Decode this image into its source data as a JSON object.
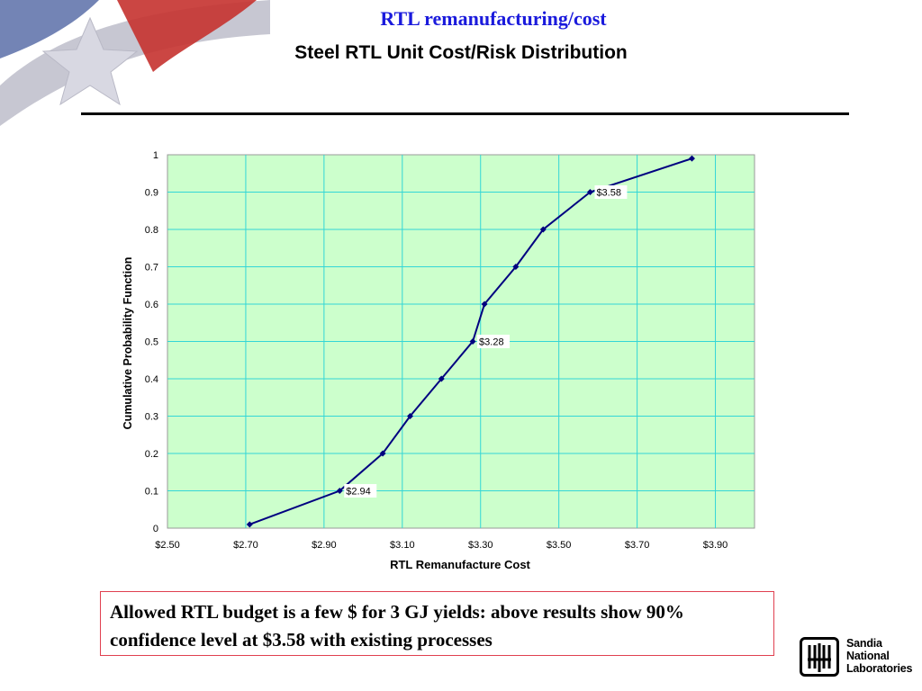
{
  "slide": {
    "title": "RTL remanufacturing/cost",
    "subtitle": "Steel RTL Unit Cost/Risk Distribution",
    "note": "Allowed RTL budget is a few $ for 3 GJ yields: above results show 90% confidence level at $3.58 with existing processes"
  },
  "logo": {
    "lines": [
      "Sandia",
      "National",
      "Laboratories"
    ]
  },
  "colors": {
    "title": "#1a1adc",
    "plot_bg": "#ccffcc",
    "grid": "#33d6d6",
    "series": "#000080",
    "note_border": "#e04050"
  },
  "chart_data": {
    "type": "line",
    "title": "",
    "xlabel": "RTL Remanufacture Cost",
    "ylabel": "Cumulative Probability Function",
    "xlim": [
      2.5,
      4.0
    ],
    "ylim": [
      0,
      1
    ],
    "x_ticks": [
      2.5,
      2.7,
      2.9,
      3.1,
      3.3,
      3.5,
      3.7,
      3.9
    ],
    "x_tick_labels": [
      "$2.50",
      "$2.70",
      "$2.90",
      "$3.10",
      "$3.30",
      "$3.50",
      "$3.70",
      "$3.90"
    ],
    "y_ticks": [
      0,
      0.1,
      0.2,
      0.3,
      0.4,
      0.5,
      0.6,
      0.7,
      0.8,
      0.9,
      1
    ],
    "y_tick_labels": [
      "0",
      "0.1",
      "0.2",
      "0.3",
      "0.4",
      "0.5",
      "0.6",
      "0.7",
      "0.8",
      "0.9",
      "1"
    ],
    "grid": true,
    "legend": "none",
    "series": [
      {
        "x": [
          2.71,
          2.94,
          3.05,
          3.12,
          3.2,
          3.28,
          3.31,
          3.39,
          3.46,
          3.58,
          3.84
        ],
        "y": [
          0.01,
          0.1,
          0.2,
          0.3,
          0.4,
          0.5,
          0.6,
          0.7,
          0.8,
          0.9,
          0.99
        ]
      }
    ],
    "data_labels": [
      {
        "x": 2.94,
        "y": 0.1,
        "text": "$2.94"
      },
      {
        "x": 3.28,
        "y": 0.5,
        "text": "$3.28"
      },
      {
        "x": 3.58,
        "y": 0.9,
        "text": "$3.58"
      }
    ]
  }
}
